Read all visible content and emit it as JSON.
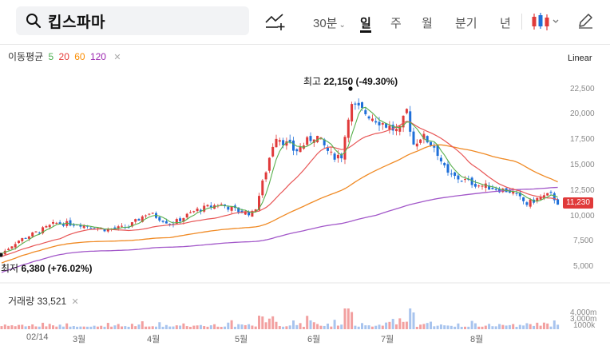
{
  "search": {
    "stock_name": "킵스파마"
  },
  "intervals": [
    {
      "label": "30분",
      "dropdown": true
    },
    {
      "label": "일",
      "active": true
    },
    {
      "label": "주"
    },
    {
      "label": "월"
    },
    {
      "label": "분기"
    },
    {
      "label": "년"
    }
  ],
  "ma_legend": {
    "title": "이동평균",
    "periods": [
      {
        "label": "5",
        "color": "#4caf50"
      },
      {
        "label": "20",
        "color": "#e53935"
      },
      {
        "label": "60",
        "color": "#fb8c00"
      },
      {
        "label": "120",
        "color": "#9c27b0"
      }
    ]
  },
  "scale_mode": "Linear",
  "y_axis_ticks": [
    "22,500",
    "20,000",
    "17,500",
    "15,000",
    "12,500",
    "10,000",
    "7,500",
    "5,000"
  ],
  "current_price": "11,230",
  "annotations": {
    "high": {
      "prefix": "최고",
      "value": "22,150 (-49.30%)"
    },
    "low": {
      "prefix": "최저",
      "value": "6,380 (+76.02%)"
    }
  },
  "volume_legend": {
    "title": "거래량",
    "value": "33,521"
  },
  "volume_axis_ticks": [
    "4,000m",
    "3,000m",
    "1000k"
  ],
  "x_axis_labels": [
    "02/14",
    "3월",
    "4월",
    "5월",
    "6월",
    "7월",
    "8월"
  ],
  "colors": {
    "up": "#e03a3a",
    "down": "#1e6fd9",
    "vol_up": "#f2a0a0",
    "vol_down": "#a8c4ee"
  }
}
